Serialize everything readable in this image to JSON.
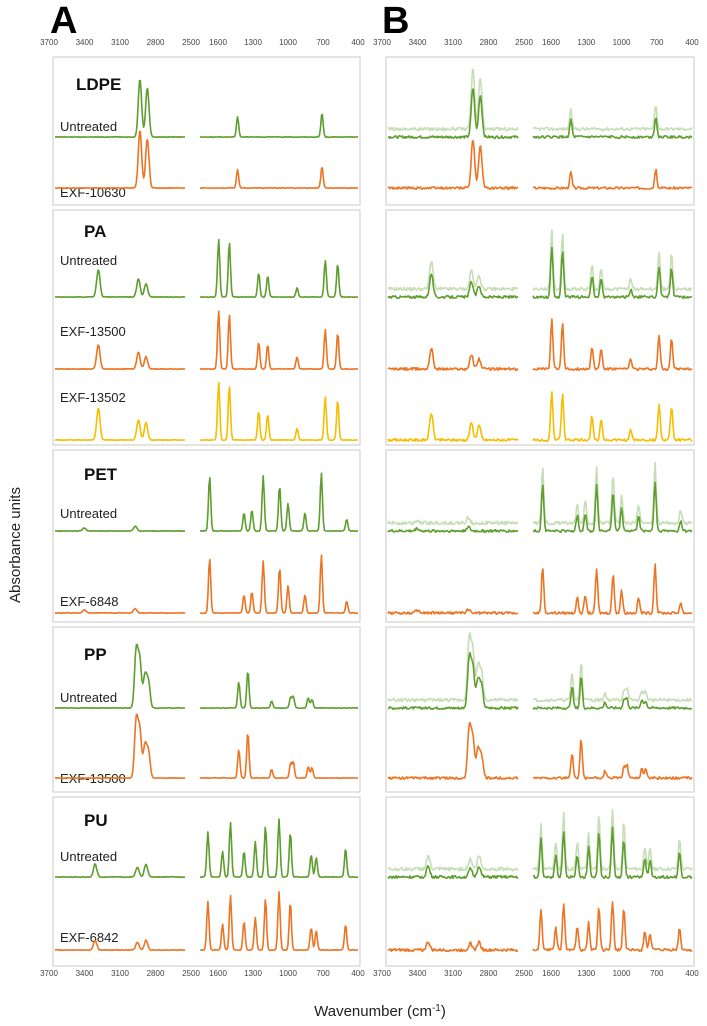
{
  "chart_data": {
    "type": "line",
    "title": "",
    "panels": [
      {
        "label": "A"
      },
      {
        "label": "B"
      }
    ],
    "ylabel": "Absorbance units",
    "xlabel": "Wavenumber (cm-1)",
    "xlabel_main": "Wavenumber (cm",
    "xlabel_sup": "-1",
    "xlabel_close": ")",
    "x_segments": [
      {
        "xlim": [
          3700,
          2500
        ],
        "ticks": [
          "3700",
          "3400",
          "3100",
          "2800",
          "2500"
        ]
      },
      {
        "xlim": [
          1800,
          400
        ],
        "ticks": [
          "1600",
          "1300",
          "1000",
          "700",
          "400"
        ]
      }
    ],
    "colors": {
      "untreated": "#5d9e2e",
      "exf_orange": "#ec7423",
      "exf_yellow": "#f5be00"
    },
    "polymers": [
      {
        "name": "LDPE",
        "samples": [
          {
            "label": "Untreated",
            "color": "untreated",
            "peaks": [
              [
                2916,
                1.0
              ],
              [
                2848,
                0.85
              ],
              [
                1467,
                0.35
              ],
              [
                719,
                0.42
              ]
            ]
          },
          {
            "label": "EXF-10630",
            "color": "exf_orange",
            "peaks": [
              [
                2916,
                1.0
              ],
              [
                2848,
                0.85
              ],
              [
                1467,
                0.32
              ],
              [
                719,
                0.38
              ]
            ]
          }
        ]
      },
      {
        "name": "PA",
        "samples": [
          {
            "label": "Untreated",
            "color": "untreated",
            "peaks": [
              [
                3300,
                0.45
              ],
              [
                2930,
                0.3
              ],
              [
                2860,
                0.22
              ],
              [
                1635,
                0.95
              ],
              [
                1540,
                0.9
              ],
              [
                1280,
                0.4
              ],
              [
                1200,
                0.35
              ],
              [
                940,
                0.15
              ],
              [
                690,
                0.6
              ],
              [
                580,
                0.55
              ]
            ]
          },
          {
            "label": "EXF-13500",
            "color": "exf_orange",
            "peaks": [
              [
                3300,
                0.4
              ],
              [
                2930,
                0.28
              ],
              [
                2860,
                0.2
              ],
              [
                1635,
                0.95
              ],
              [
                1540,
                0.9
              ],
              [
                1280,
                0.45
              ],
              [
                1200,
                0.4
              ],
              [
                940,
                0.2
              ],
              [
                690,
                0.65
              ],
              [
                580,
                0.6
              ]
            ]
          },
          {
            "label": "EXF-13502",
            "color": "exf_yellow",
            "peaks": [
              [
                3300,
                0.55
              ],
              [
                2930,
                0.35
              ],
              [
                2860,
                0.3
              ],
              [
                1635,
                1.0
              ],
              [
                1540,
                0.95
              ],
              [
                1280,
                0.5
              ],
              [
                1200,
                0.45
              ],
              [
                940,
                0.2
              ],
              [
                690,
                0.75
              ],
              [
                580,
                0.7
              ]
            ]
          }
        ]
      },
      {
        "name": "PET",
        "samples": [
          {
            "label": "Untreated",
            "color": "untreated",
            "peaks": [
              [
                3430,
                0.05
              ],
              [
                2960,
                0.08
              ],
              [
                1715,
                0.9
              ],
              [
                1410,
                0.3
              ],
              [
                1340,
                0.35
              ],
              [
                1240,
                0.9
              ],
              [
                1095,
                0.75
              ],
              [
                1020,
                0.45
              ],
              [
                870,
                0.3
              ],
              [
                725,
                0.95
              ],
              [
                500,
                0.2
              ]
            ]
          },
          {
            "label": "EXF-6848",
            "color": "exf_orange",
            "peaks": [
              [
                3430,
                0.05
              ],
              [
                2960,
                0.07
              ],
              [
                1715,
                0.9
              ],
              [
                1410,
                0.3
              ],
              [
                1340,
                0.35
              ],
              [
                1240,
                0.85
              ],
              [
                1095,
                0.75
              ],
              [
                1020,
                0.45
              ],
              [
                870,
                0.3
              ],
              [
                725,
                0.95
              ],
              [
                500,
                0.2
              ]
            ]
          }
        ]
      },
      {
        "name": "PP",
        "samples": [
          {
            "label": "Untreated",
            "color": "untreated",
            "peaks": [
              [
                2950,
                1.0
              ],
              [
                2917,
                0.8
              ],
              [
                2870,
                0.55
              ],
              [
                2838,
                0.45
              ],
              [
                1456,
                0.45
              ],
              [
                1376,
                0.65
              ],
              [
                1165,
                0.12
              ],
              [
                998,
                0.18
              ],
              [
                973,
                0.2
              ],
              [
                841,
                0.18
              ],
              [
                808,
                0.15
              ]
            ]
          },
          {
            "label": "EXF-13500",
            "color": "exf_orange",
            "peaks": [
              [
                2950,
                1.0
              ],
              [
                2917,
                0.8
              ],
              [
                2870,
                0.55
              ],
              [
                2838,
                0.45
              ],
              [
                1456,
                0.5
              ],
              [
                1376,
                0.8
              ],
              [
                1165,
                0.15
              ],
              [
                998,
                0.25
              ],
              [
                973,
                0.28
              ],
              [
                841,
                0.2
              ],
              [
                808,
                0.18
              ]
            ]
          }
        ]
      },
      {
        "name": "PU",
        "samples": [
          {
            "label": "Untreated",
            "color": "untreated",
            "peaks": [
              [
                3330,
                0.2
              ],
              [
                2940,
                0.15
              ],
              [
                2860,
                0.2
              ],
              [
                1730,
                0.7
              ],
              [
                1600,
                0.4
              ],
              [
                1530,
                0.85
              ],
              [
                1410,
                0.4
              ],
              [
                1310,
                0.55
              ],
              [
                1220,
                0.8
              ],
              [
                1100,
                0.9
              ],
              [
                1000,
                0.7
              ],
              [
                815,
                0.35
              ],
              [
                770,
                0.3
              ],
              [
                510,
                0.45
              ]
            ]
          },
          {
            "label": "EXF-6842",
            "color": "exf_orange",
            "peaks": [
              [
                3330,
                0.15
              ],
              [
                2940,
                0.12
              ],
              [
                2860,
                0.15
              ],
              [
                1730,
                0.75
              ],
              [
                1600,
                0.4
              ],
              [
                1530,
                0.85
              ],
              [
                1410,
                0.45
              ],
              [
                1310,
                0.5
              ],
              [
                1220,
                0.8
              ],
              [
                1100,
                0.9
              ],
              [
                1000,
                0.75
              ],
              [
                815,
                0.35
              ],
              [
                770,
                0.3
              ],
              [
                510,
                0.4
              ]
            ]
          }
        ]
      }
    ]
  }
}
